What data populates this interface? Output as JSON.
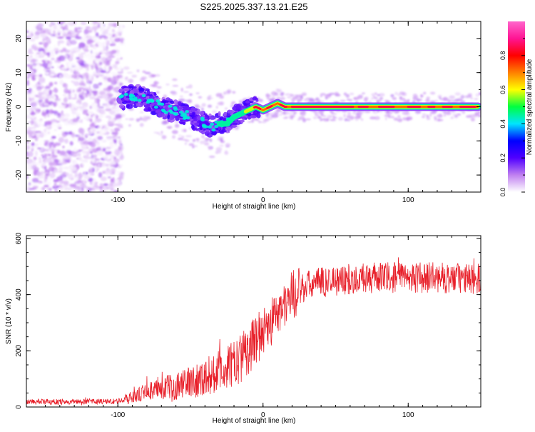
{
  "chart_data": [
    {
      "type": "heatmap",
      "title": "S225.2025.337.13.21.E25",
      "xlabel": "Height of straight line (km)",
      "ylabel": "Frequency (Hz)",
      "xlim": [
        -163,
        150
      ],
      "ylim": [
        -25,
        25
      ],
      "xticks": [
        -100,
        0,
        100
      ],
      "yticks": [
        -20,
        -10,
        0,
        10,
        20
      ],
      "colorbar": {
        "label": "Normalized spectral amplitude",
        "range": [
          0,
          1
        ],
        "ticks": [
          "0.0",
          "0.2",
          "0.4",
          "0.6",
          "0.8"
        ],
        "tick_values": [
          0,
          0.2,
          0.4,
          0.6,
          0.8
        ],
        "colors": [
          "#ffffff",
          "#c080f0",
          "#5000ff",
          "#0000ff",
          "#00e5ff",
          "#00ff40",
          "#ffff00",
          "#ff8000",
          "#ff0000",
          "#ff1493",
          "#ff66cc"
        ]
      },
      "ridge": {
        "x": [
          -98,
          -95,
          -90,
          -85,
          -80,
          -75,
          -70,
          -65,
          -60,
          -55,
          -50,
          -45,
          -40,
          -35,
          -30,
          -25,
          -20,
          -15,
          -10,
          -5,
          0,
          5,
          10,
          15,
          20,
          30,
          40,
          50,
          60,
          70,
          80,
          90,
          100,
          110,
          120,
          130,
          140,
          148
        ],
        "y": [
          2,
          3,
          3,
          3,
          2,
          1,
          0,
          -1,
          -1,
          -2,
          -3,
          -4,
          -5,
          -6,
          -5,
          -5,
          -3,
          -2,
          -1,
          0,
          -1,
          0,
          1,
          0,
          0,
          0,
          0,
          0,
          0,
          0,
          0,
          0,
          0,
          0,
          0,
          0,
          0,
          0
        ]
      }
    },
    {
      "type": "line",
      "xlabel": "Height of straight line (km)",
      "ylabel": "SNR (10 * v/v)",
      "xlim": [
        -163,
        150
      ],
      "ylim": [
        0,
        610
      ],
      "xticks": [
        -100,
        0,
        100
      ],
      "yticks": [
        0,
        200,
        400,
        600
      ],
      "color": "#e8202a",
      "trend": {
        "x": [
          -163,
          -100,
          -90,
          -80,
          -60,
          -40,
          -20,
          -10,
          0,
          10,
          20,
          30,
          40,
          60,
          80,
          100,
          120,
          150
        ],
        "y": [
          18,
          20,
          35,
          55,
          75,
          105,
          150,
          205,
          270,
          330,
          400,
          430,
          445,
          455,
          460,
          462,
          460,
          455
        ]
      }
    }
  ]
}
